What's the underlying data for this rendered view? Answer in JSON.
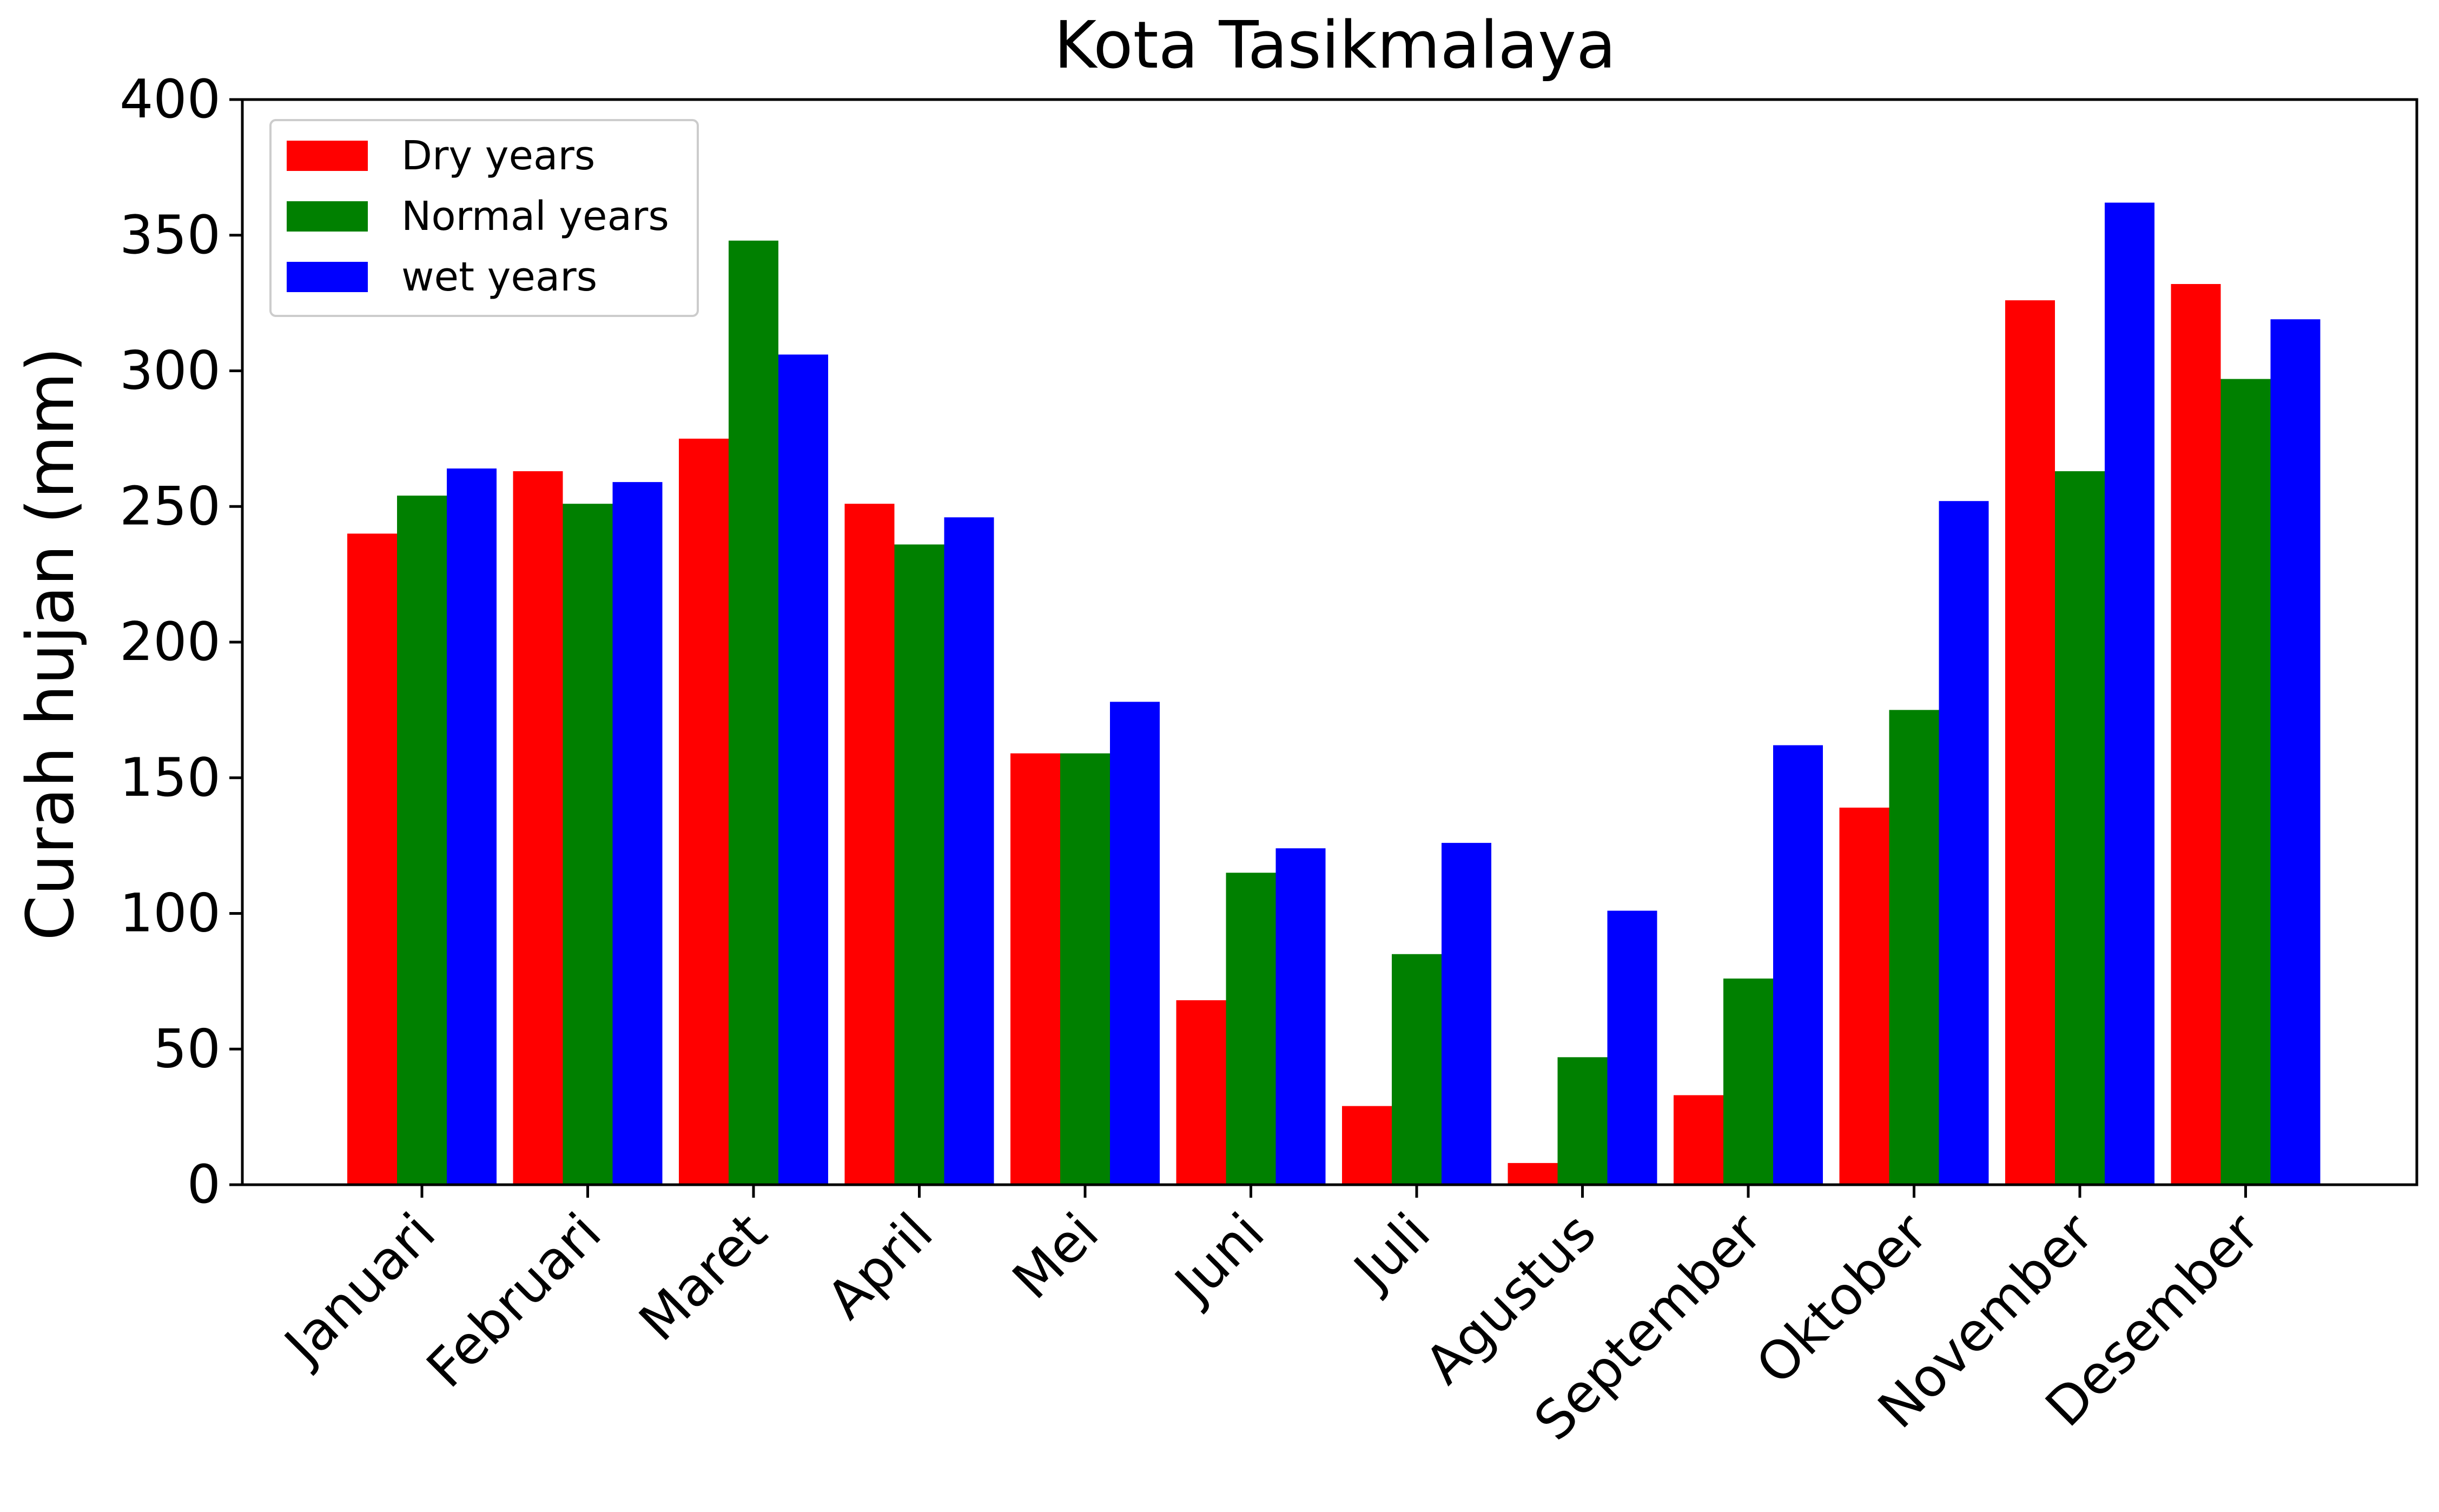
{
  "chart_data": {
    "type": "bar",
    "title": "Kota Tasikmalaya",
    "xlabel": "",
    "ylabel": "Curah hujan (mm)",
    "ylim": [
      0,
      400
    ],
    "yticks": [
      "0",
      "50",
      "100",
      "150",
      "200",
      "250",
      "300",
      "350",
      "400"
    ],
    "grid": false,
    "legend_position": "top-left",
    "categories": [
      "Januari",
      "Februari",
      "Maret",
      "April",
      "Mei",
      "Juni",
      "Juli",
      "Agustus",
      "September",
      "Oktober",
      "November",
      "Desember"
    ],
    "series": [
      {
        "name": "Dry years",
        "color": "#ff0000",
        "values": [
          240,
          263,
          275,
          251,
          159,
          68,
          29,
          8,
          33,
          139,
          326,
          332
        ]
      },
      {
        "name": "Normal years",
        "color": "#008000",
        "values": [
          254,
          251,
          348,
          236,
          159,
          115,
          85,
          47,
          76,
          175,
          263,
          297
        ]
      },
      {
        "name": "wet years",
        "color": "#0000ff",
        "values": [
          264,
          259,
          306,
          246,
          178,
          124,
          126,
          101,
          162,
          252,
          362,
          319
        ]
      }
    ]
  }
}
